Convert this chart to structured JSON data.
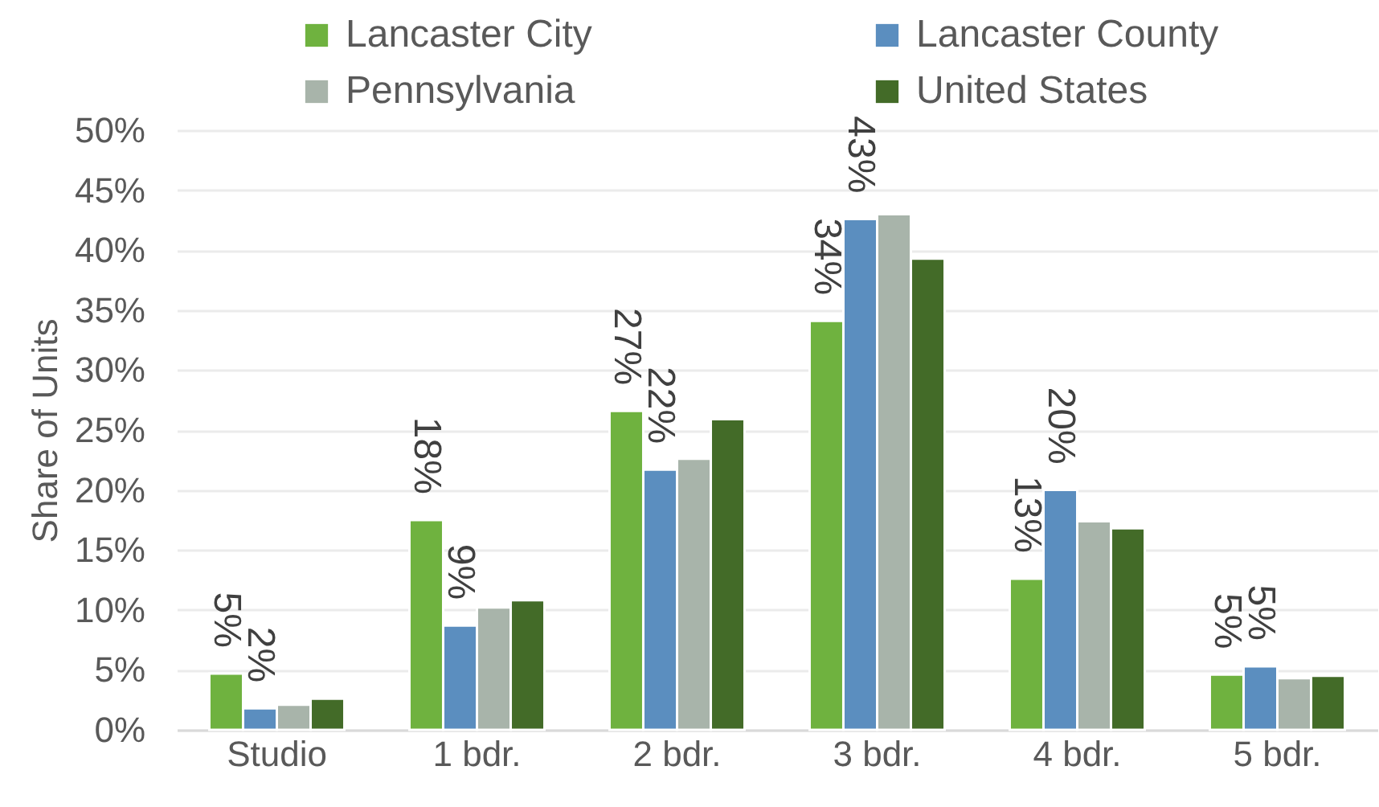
{
  "chart_data": {
    "type": "bar",
    "ylabel": "Share of Units",
    "categories": [
      "Studio",
      "1 bdr.",
      "2  bdr.",
      "3  bdr.",
      "4  bdr.",
      "5  bdr."
    ],
    "series": [
      {
        "name": "Lancaster City",
        "color": "#6fb23f",
        "values": [
          4.7,
          17.5,
          26.6,
          34.1,
          12.6,
          4.6
        ],
        "value_labels": [
          "5%",
          "18%",
          "27%",
          "34%",
          "13%",
          "5%"
        ]
      },
      {
        "name": "Lancaster County",
        "color": "#5b8ebf",
        "values": [
          1.8,
          8.7,
          21.7,
          42.6,
          20.0,
          5.3
        ],
        "value_labels": [
          "2%",
          "9%",
          "22%",
          "43%",
          "20%",
          "5%"
        ]
      },
      {
        "name": "Pennsylvania",
        "color": "#a8b4aa",
        "values": [
          2.1,
          10.2,
          22.6,
          43.0,
          17.4,
          4.3
        ]
      },
      {
        "name": "United States",
        "color": "#436b28",
        "values": [
          2.6,
          10.8,
          25.9,
          39.3,
          16.8,
          4.5
        ]
      }
    ],
    "ylim": [
      0,
      50
    ],
    "yticks": [
      {
        "value": 0,
        "label": "0%"
      },
      {
        "value": 5,
        "label": "5%"
      },
      {
        "value": 10,
        "label": "10%"
      },
      {
        "value": 15,
        "label": "15%"
      },
      {
        "value": 20,
        "label": "20%"
      },
      {
        "value": 25,
        "label": "25%"
      },
      {
        "value": 30,
        "label": "30%"
      },
      {
        "value": 35,
        "label": "35%"
      },
      {
        "value": 40,
        "label": "40%"
      },
      {
        "value": 45,
        "label": "45%"
      },
      {
        "value": 50,
        "label": "50%"
      }
    ],
    "grid": "y",
    "legend": "top"
  }
}
